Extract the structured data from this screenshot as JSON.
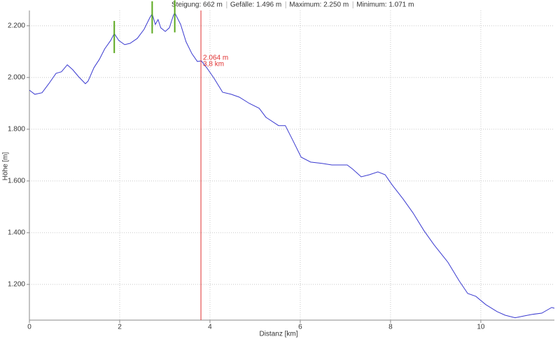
{
  "chart_data": {
    "type": "line",
    "stats": [
      "Steigung: 662 m",
      "Gefälle: 1.496 m",
      "Maximum: 2.250 m",
      "Minimum: 1.071 m"
    ],
    "x_label": "Distanz [km]",
    "y_label": "Höhe [m]",
    "x": [
      0,
      0.12,
      0.28,
      0.43,
      0.59,
      0.71,
      0.84,
      0.96,
      1.09,
      1.24,
      1.3,
      1.43,
      1.55,
      1.67,
      1.8,
      1.88,
      1.98,
      2.11,
      2.23,
      2.39,
      2.54,
      2.67,
      2.72,
      2.79,
      2.85,
      2.91,
      3.01,
      3.1,
      3.19,
      3.22,
      3.35,
      3.47,
      3.6,
      3.72,
      3.81,
      3.94,
      4.09,
      4.28,
      4.47,
      4.65,
      4.87,
      5.09,
      5.24,
      5.52,
      5.67,
      5.83,
      6.02,
      6.23,
      6.48,
      6.7,
      7.04,
      7.16,
      7.35,
      7.53,
      7.72,
      7.88,
      8.03,
      8.28,
      8.5,
      8.74,
      8.96,
      9.27,
      9.52,
      9.71,
      9.89,
      10.11,
      10.36,
      10.54,
      10.76,
      10.95,
      11.13,
      11.35,
      11.57,
      11.63
    ],
    "series": [
      {
        "color": "#3a3ad0",
        "values": [
          1951,
          1935,
          1941,
          1976,
          2016,
          2022,
          2049,
          2030,
          2003,
          1976,
          1986,
          2038,
          2070,
          2111,
          2143,
          2170,
          2143,
          2127,
          2132,
          2151,
          2186,
          2232,
          2246,
          2205,
          2224,
          2192,
          2178,
          2192,
          2240,
          2250,
          2205,
          2138,
          2092,
          2062,
          2064,
          2035,
          1997,
          1943,
          1935,
          1924,
          1900,
          1881,
          1846,
          1814,
          1814,
          1759,
          1692,
          1673,
          1668,
          1662,
          1662,
          1646,
          1616,
          1624,
          1635,
          1624,
          1586,
          1530,
          1476,
          1408,
          1354,
          1286,
          1214,
          1165,
          1154,
          1122,
          1095,
          1081,
          1071,
          1078,
          1084,
          1089,
          1111,
          1108
        ]
      }
    ],
    "markers": {
      "color": "#5aa81e",
      "x": [
        1.88,
        2.72,
        3.22
      ],
      "values": [
        2170,
        2246,
        2250
      ]
    },
    "cursor": {
      "color": "#e03030",
      "x": 3.8,
      "labels": [
        "2.064 m",
        "3,8 km"
      ]
    },
    "xlim": [
      0,
      11.63
    ],
    "ylim": [
      1062,
      2259
    ],
    "xticks": [
      0,
      2,
      4,
      6,
      8,
      10
    ],
    "yticks": [
      {
        "value": 1200,
        "label": "1.200"
      },
      {
        "value": 1400,
        "label": "1.400"
      },
      {
        "value": 1600,
        "label": "1.600"
      },
      {
        "value": 1800,
        "label": "1.800"
      },
      {
        "value": 2000,
        "label": "2.000"
      },
      {
        "value": 2200,
        "label": "2.200"
      }
    ],
    "grid": true
  }
}
